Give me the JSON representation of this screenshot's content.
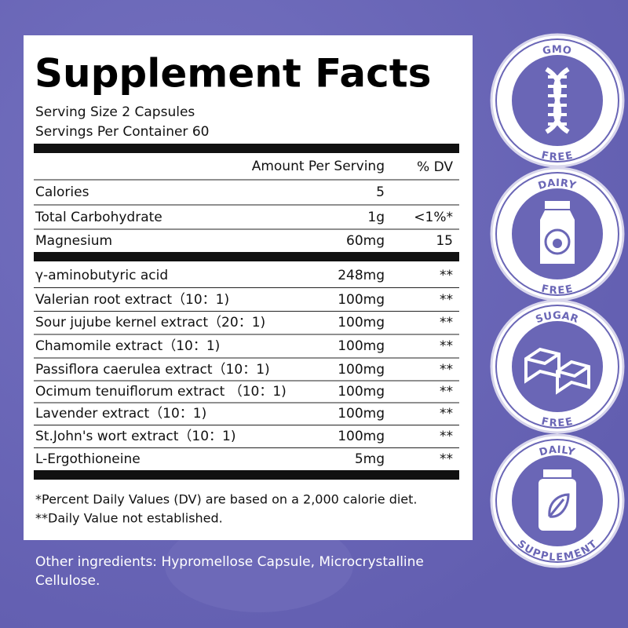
{
  "title": "Supplement Facts",
  "serving_size": "Serving Size 2 Capsules",
  "servings_per_container": "Servings Per Container 60",
  "header": {
    "amount": "Amount Per Serving",
    "dv": "% DV"
  },
  "nutrients": [
    {
      "name": "Calories",
      "amount": "5",
      "dv": null
    },
    {
      "name": "Total Carbohydrate",
      "amount": "1g",
      "dv": "<1%*"
    },
    {
      "name": "Magnesium",
      "amount": "60mg",
      "dv": "15"
    }
  ],
  "ingredients": [
    {
      "name": "γ-aminobutyric acid",
      "amount": "248mg",
      "dv": "**"
    },
    {
      "name": "Valerian root extract（10：1)",
      "amount": "100mg",
      "dv": "**"
    },
    {
      "name": "Sour jujube kernel extract（20：1)",
      "amount": "100mg",
      "dv": "**"
    },
    {
      "name": "Chamomile extract（10：1)",
      "amount": "100mg",
      "dv": "**"
    },
    {
      "name": "Passiflora caerulea extract（10：1)",
      "amount": "100mg",
      "dv": "**"
    },
    {
      "name": "Ocimum tenuiflorum extract （10：1)",
      "amount": "100mg",
      "dv": "**"
    },
    {
      "name": "Lavender extract（10：1)",
      "amount": "100mg",
      "dv": "**"
    },
    {
      "name": "St.John's wort extract（10：1)",
      "amount": "100mg",
      "dv": "**"
    },
    {
      "name": "L-Ergothioneine",
      "amount": "5mg",
      "dv": "**"
    }
  ],
  "footnotes": [
    "*Percent Daily Values (DV) are based on a 2,000 calorie diet.",
    "**Daily Value not established."
  ],
  "other_ingredients": [
    "Other ingredients: Hypromellose Capsule, Microcrystalline",
    "Cellulose."
  ],
  "badges": [
    {
      "top": "GMO",
      "bottom": "FREE"
    },
    {
      "top": "DAIRY",
      "bottom": "FREE"
    },
    {
      "top": "SUGAR",
      "bottom": "FREE"
    },
    {
      "top": "DAILY",
      "bottom": "SUPPLEMENT"
    }
  ]
}
